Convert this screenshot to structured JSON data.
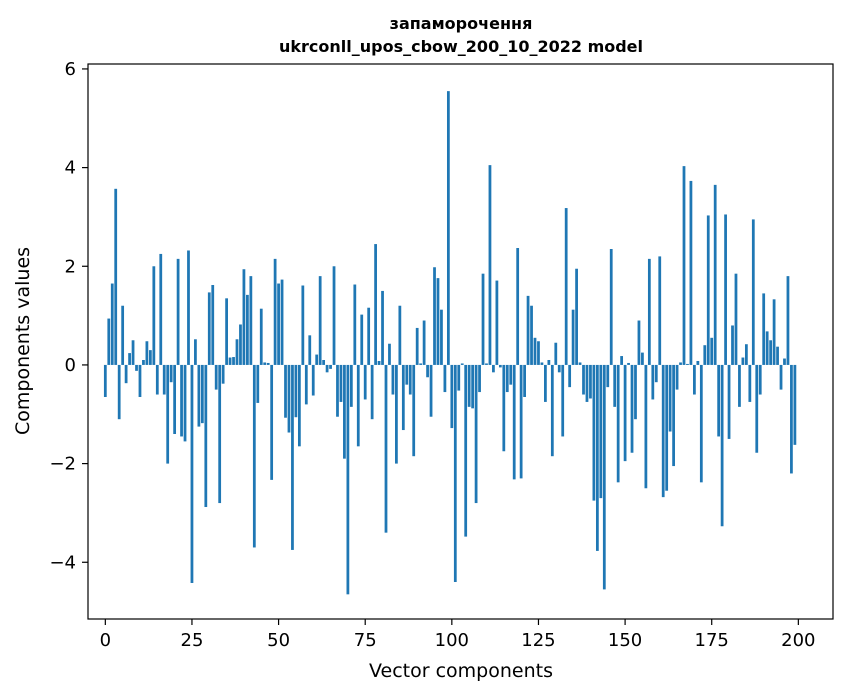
{
  "chart_data": {
    "type": "bar",
    "title_line1": "запаморочення",
    "title_line2": "ukrconll_upos_cbow_200_10_2022 model",
    "xlabel": "Vector components",
    "ylabel": "Components values",
    "xlim": [
      -5,
      210
    ],
    "ylim": [
      -5.15,
      6.1
    ],
    "xticks": [
      0,
      25,
      50,
      75,
      100,
      125,
      150,
      175,
      200
    ],
    "xtick_labels": [
      "0",
      "25",
      "50",
      "75",
      "100",
      "125",
      "150",
      "175",
      "200"
    ],
    "yticks": [
      -4,
      -2,
      0,
      2,
      4,
      6
    ],
    "ytick_labels": [
      "−4",
      "−2",
      "0",
      "2",
      "4",
      "6"
    ],
    "bar_color": "#1f77b4",
    "grid": false,
    "values": [
      -0.65,
      0.94,
      1.65,
      3.57,
      -1.1,
      1.2,
      -0.37,
      0.24,
      0.5,
      -0.12,
      -0.65,
      0.1,
      0.48,
      0.3,
      2.0,
      -0.6,
      2.25,
      -0.6,
      -2.0,
      -0.35,
      -1.4,
      2.15,
      -1.45,
      -1.55,
      2.32,
      -4.42,
      0.52,
      -1.25,
      -1.18,
      -2.88,
      1.47,
      1.62,
      -0.5,
      -2.8,
      -0.38,
      1.35,
      0.15,
      0.16,
      0.52,
      0.82,
      1.94,
      1.42,
      1.8,
      -3.7,
      -0.77,
      1.14,
      0.05,
      0.04,
      -2.33,
      2.15,
      1.65,
      1.73,
      -1.07,
      -1.37,
      -3.75,
      -1.06,
      -1.65,
      1.61,
      -0.8,
      0.6,
      -0.62,
      0.21,
      1.8,
      0.1,
      -0.15,
      -0.08,
      2.0,
      -1.05,
      -0.75,
      -1.9,
      -4.65,
      -0.85,
      1.63,
      -1.65,
      1.02,
      -0.7,
      1.16,
      -1.1,
      2.45,
      0.08,
      1.5,
      -3.4,
      0.43,
      -0.6,
      -2.0,
      1.2,
      -1.32,
      -0.4,
      -0.6,
      -1.85,
      0.75,
      0.03,
      0.9,
      -0.25,
      -1.05,
      1.98,
      1.76,
      1.12,
      -0.55,
      5.55,
      -1.28,
      -4.4,
      -0.52,
      0.03,
      -3.48,
      -0.85,
      -0.88,
      -2.8,
      -0.55,
      1.85,
      0.03,
      4.05,
      -0.15,
      1.71,
      -0.05,
      -1.75,
      -0.55,
      -0.4,
      -2.32,
      2.37,
      -2.3,
      -0.65,
      1.4,
      1.2,
      0.55,
      0.48,
      0.05,
      -0.75,
      0.1,
      -1.85,
      0.45,
      -0.15,
      -1.45,
      3.18,
      -0.45,
      1.12,
      1.95,
      0.05,
      -0.6,
      -0.75,
      -0.68,
      -2.75,
      -3.77,
      -2.7,
      -4.55,
      -0.45,
      2.35,
      -0.85,
      -2.38,
      0.18,
      -1.95,
      0.04,
      -1.78,
      -1.1,
      0.9,
      0.25,
      -2.5,
      2.15,
      -0.7,
      -0.35,
      2.2,
      -2.68,
      -2.55,
      -1.35,
      -2.05,
      -0.5,
      0.05,
      4.03,
      0.02,
      3.73,
      -0.6,
      0.08,
      -2.38,
      0.4,
      3.03,
      0.55,
      3.65,
      -1.45,
      -3.27,
      3.05,
      -1.5,
      0.8,
      1.85,
      -0.85,
      0.15,
      0.42,
      -0.75,
      2.95,
      -1.78,
      -0.6,
      1.45,
      0.68,
      0.5,
      1.33,
      0.37,
      -0.5,
      0.13,
      1.8,
      -2.2,
      -1.62
    ]
  }
}
